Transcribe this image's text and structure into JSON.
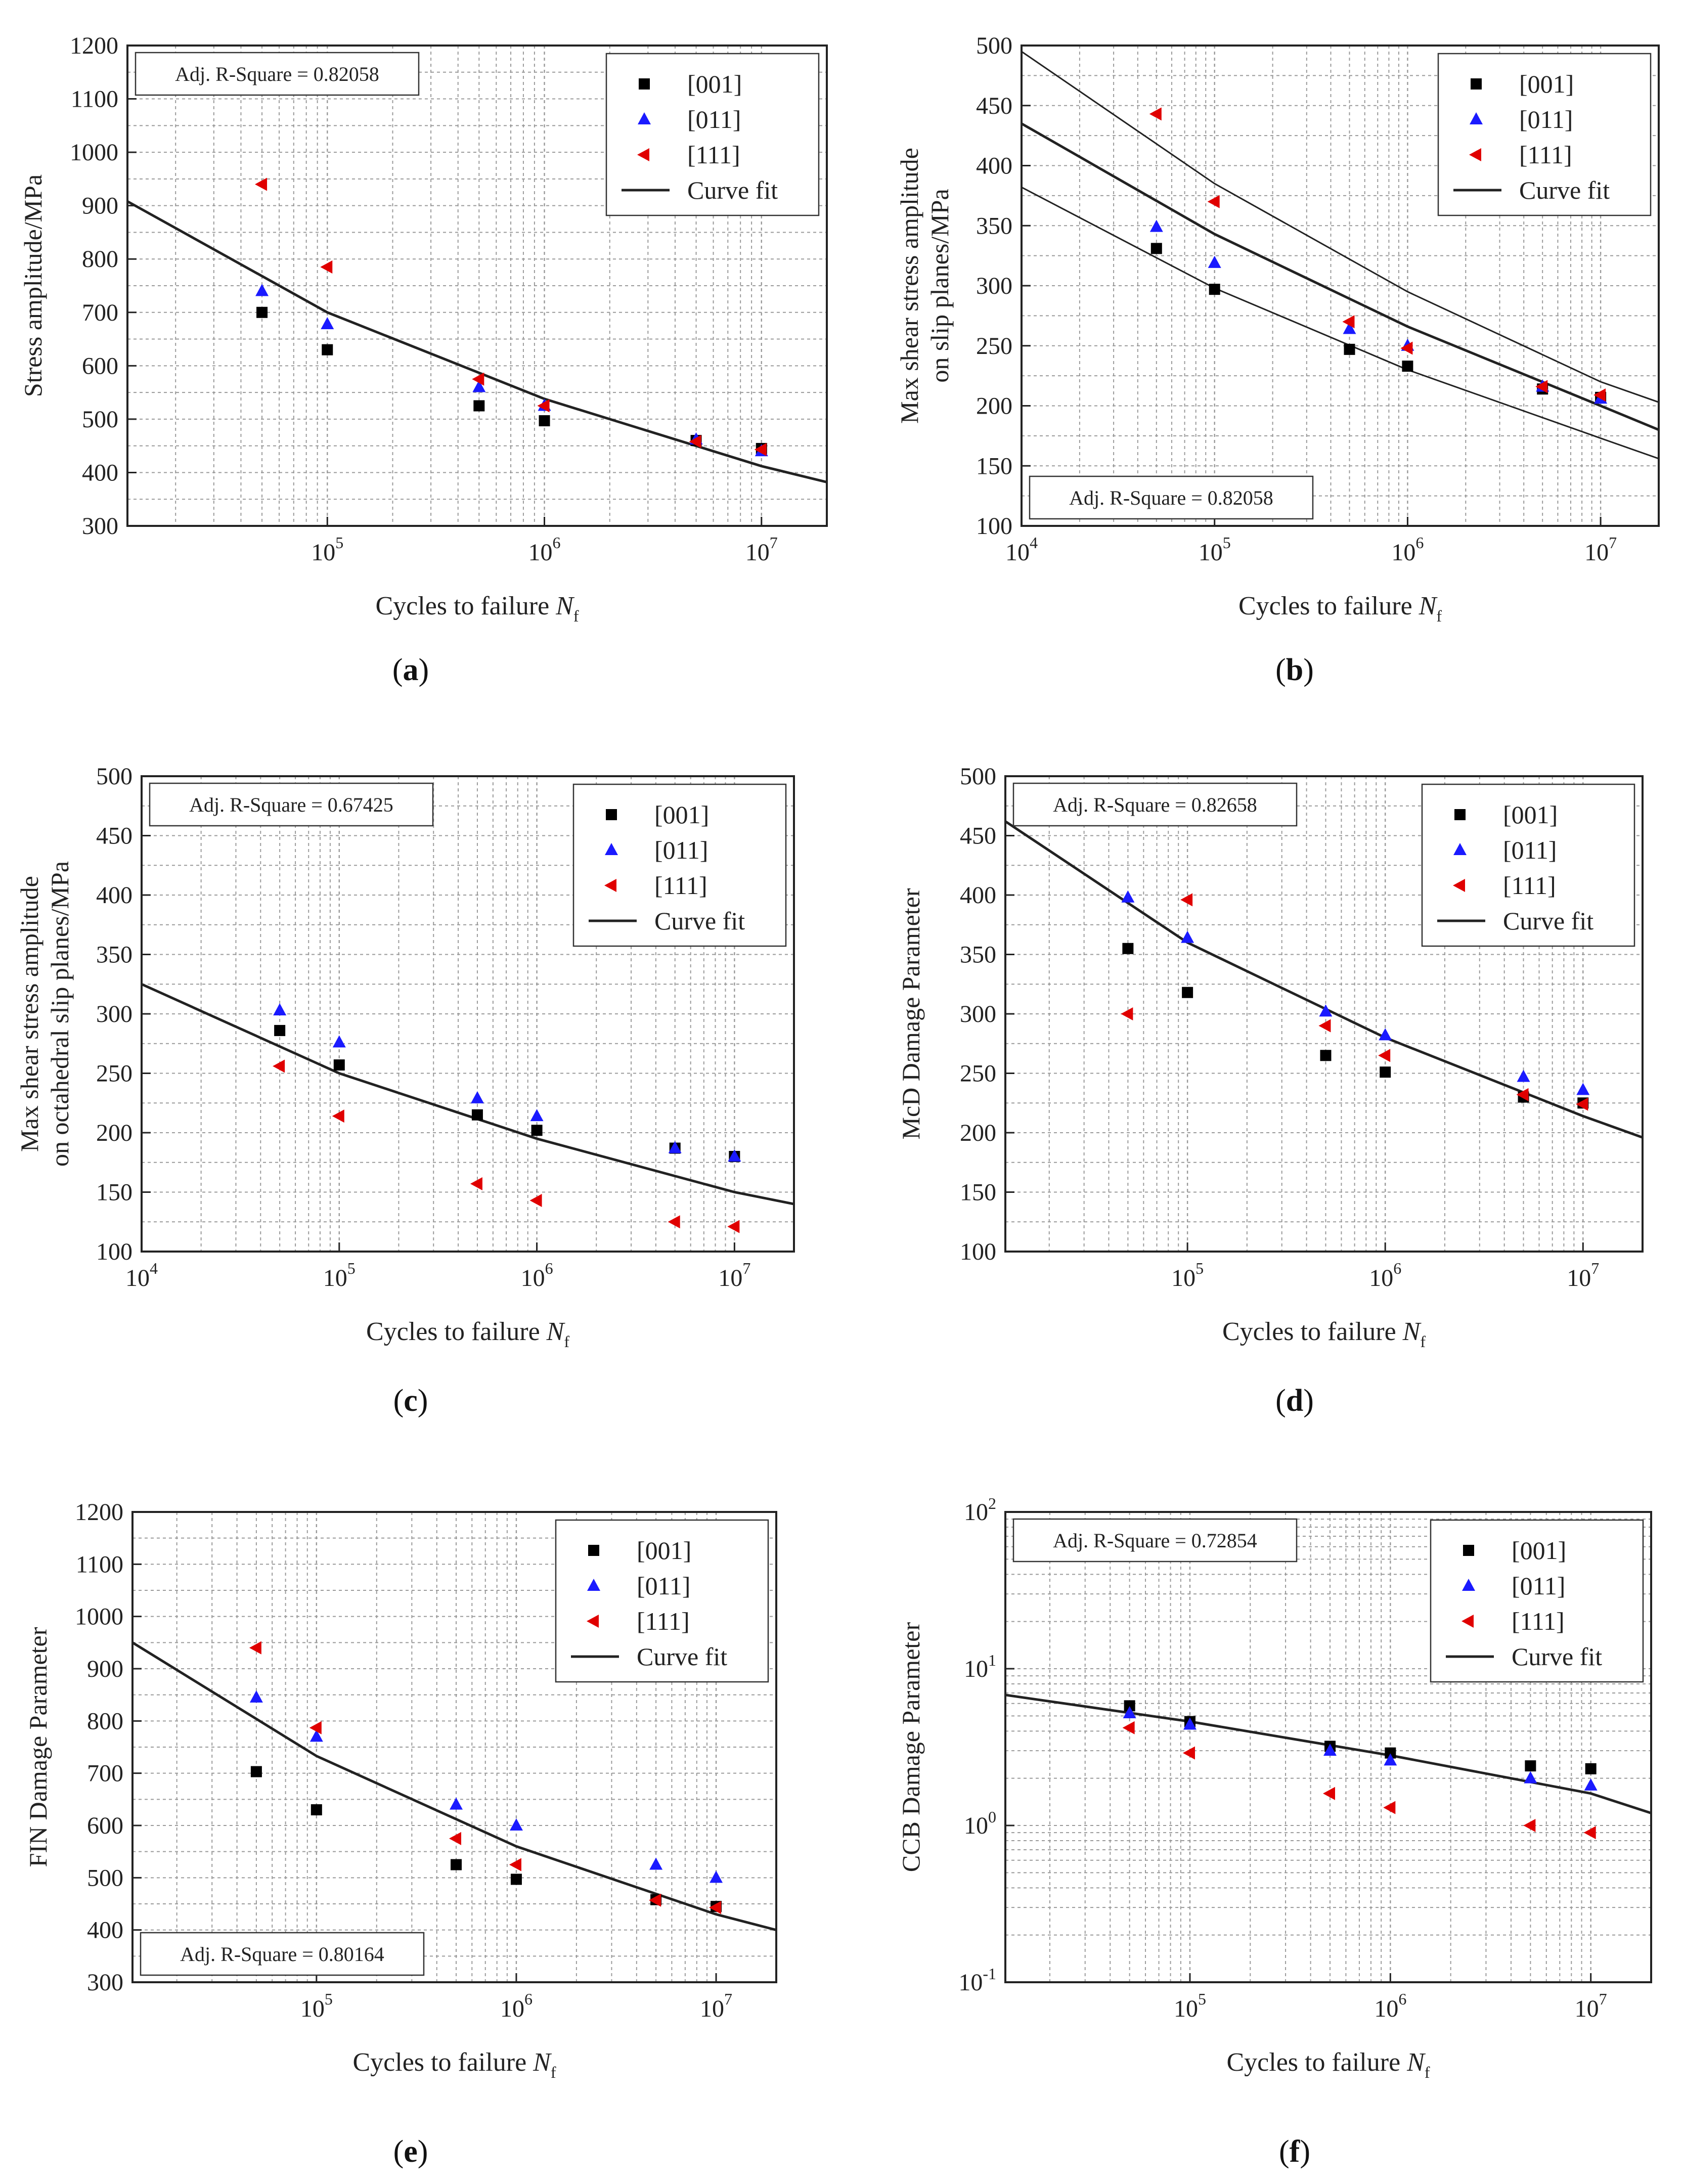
{
  "figure": {
    "x_axis_label": "Cycles to failure",
    "x_axis_symbol": "N",
    "x_axis_subscript": "f"
  },
  "legend_labels": [
    "[001]",
    "[011]",
    "[111]",
    "Curve fit"
  ],
  "colors": {
    "s001": "#000000",
    "s011": "#1a1aff",
    "s111": "#e00000",
    "fit": "#222222",
    "grid": "#9a9a9a"
  },
  "chart_data": [
    {
      "id": "a",
      "type": "scatter",
      "panel_label": "a",
      "ylabel": "Stress amplitude/MPa",
      "yscale": "linear",
      "ylim": [
        300,
        1200
      ],
      "yticks": [
        300,
        400,
        500,
        600,
        700,
        800,
        900,
        1000,
        1100,
        1200
      ],
      "yticklabels": [
        "300",
        "400",
        "500",
        "600",
        "700",
        "800",
        "900",
        "1000",
        "1100",
        "1200"
      ],
      "xlim": [
        12000,
        20000000
      ],
      "xticks": [
        100000,
        1000000,
        10000000
      ],
      "xdecade_start": 4,
      "annotation": "Adj. R-Square = 0.82058",
      "annotation_pos": "top-left",
      "legend_pos": "top-right",
      "series": [
        {
          "name": "[001]",
          "x": [
            50000,
            100000,
            500000,
            1000000,
            5000000,
            10000000
          ],
          "y": [
            700,
            630,
            525,
            497,
            460,
            445
          ]
        },
        {
          "name": "[011]",
          "x": [
            50000,
            100000,
            500000,
            1000000,
            5000000,
            10000000
          ],
          "y": [
            740,
            678,
            560,
            525,
            462,
            440
          ]
        },
        {
          "name": "[111]",
          "x": [
            50000,
            100000,
            500000,
            1000000,
            5000000,
            10000000
          ],
          "y": [
            940,
            785,
            575,
            525,
            458,
            443
          ]
        }
      ],
      "fits": [
        {
          "name": "Curve fit",
          "x": [
            12000,
            100000,
            1000000,
            10000000,
            20000000
          ],
          "y": [
            908,
            700,
            538,
            412,
            382
          ]
        }
      ]
    },
    {
      "id": "b",
      "type": "scatter",
      "panel_label": "b",
      "ylabel_lines": [
        "Max shear stress amplitude",
        "on slip planes/MPa"
      ],
      "yscale": "linear",
      "ylim": [
        100,
        500
      ],
      "yticks": [
        100,
        150,
        200,
        250,
        300,
        350,
        400,
        450,
        500
      ],
      "yticklabels": [
        "100",
        "150",
        "200",
        "250",
        "300",
        "350",
        "400",
        "450",
        "500"
      ],
      "xlim": [
        10000,
        20000000
      ],
      "xticks": [
        10000,
        100000,
        1000000,
        10000000
      ],
      "xdecade_start": 4,
      "annotation": "Adj. R-Square = 0.82058",
      "annotation_pos": "bottom-left",
      "legend_pos": "top-right",
      "series": [
        {
          "name": "[001]",
          "x": [
            50000,
            100000,
            500000,
            1000000,
            5000000,
            10000000
          ],
          "y": [
            331,
            297,
            247,
            233,
            214,
            207
          ]
        },
        {
          "name": "[011]",
          "x": [
            50000,
            100000,
            500000,
            1000000,
            5000000,
            10000000
          ],
          "y": [
            349,
            319,
            264,
            250,
            216,
            206
          ]
        },
        {
          "name": "[111]",
          "x": [
            50000,
            100000,
            500000,
            1000000,
            5000000,
            10000000
          ],
          "y": [
            443,
            370,
            270,
            248,
            216,
            209
          ]
        }
      ],
      "fits": [
        {
          "name": "Curve fit",
          "x": [
            10000,
            100000,
            1000000,
            10000000,
            20000000
          ],
          "y": [
            435,
            343,
            266,
            200,
            180
          ]
        },
        {
          "name": "upper bound",
          "x": [
            10000,
            100000,
            1000000,
            10000000,
            20000000
          ],
          "y": [
            495,
            385,
            295,
            220,
            203
          ]
        },
        {
          "name": "lower bound",
          "x": [
            10000,
            100000,
            1000000,
            10000000,
            20000000
          ],
          "y": [
            382,
            298,
            230,
            173,
            156
          ]
        }
      ]
    },
    {
      "id": "c",
      "type": "scatter",
      "panel_label": "c",
      "ylabel_lines": [
        "Max shear stress amplitude",
        "on octahedral slip planes/MPa"
      ],
      "yscale": "linear",
      "ylim": [
        100,
        500
      ],
      "yticks": [
        100,
        150,
        200,
        250,
        300,
        350,
        400,
        450,
        500
      ],
      "yticklabels": [
        "100",
        "150",
        "200",
        "250",
        "300",
        "350",
        "400",
        "450",
        "500"
      ],
      "xlim": [
        10000,
        20000000
      ],
      "xticks": [
        10000,
        100000,
        1000000,
        10000000
      ],
      "xdecade_start": 4,
      "annotation": "Adj. R-Square = 0.67425",
      "annotation_pos": "top-left",
      "legend_pos": "top-right",
      "series": [
        {
          "name": "[001]",
          "x": [
            50000,
            100000,
            500000,
            1000000,
            5000000,
            10000000
          ],
          "y": [
            286,
            257,
            215,
            202,
            187,
            180
          ]
        },
        {
          "name": "[011]",
          "x": [
            50000,
            100000,
            500000,
            1000000,
            5000000,
            10000000
          ],
          "y": [
            303,
            276,
            229,
            214,
            187,
            180
          ]
        },
        {
          "name": "[111]",
          "x": [
            50000,
            100000,
            500000,
            1000000,
            5000000,
            10000000
          ],
          "y": [
            256,
            214,
            157,
            143,
            125,
            121
          ]
        }
      ],
      "fits": [
        {
          "name": "Curve fit",
          "x": [
            10000,
            100000,
            1000000,
            10000000,
            20000000
          ],
          "y": [
            325,
            250,
            195,
            150,
            140
          ]
        }
      ]
    },
    {
      "id": "d",
      "type": "scatter",
      "panel_label": "d",
      "ylabel": "McD Damage Parameter",
      "yscale": "linear",
      "ylim": [
        100,
        500
      ],
      "yticks": [
        100,
        150,
        200,
        250,
        300,
        350,
        400,
        450,
        500
      ],
      "yticklabels": [
        "100",
        "150",
        "200",
        "250",
        "300",
        "350",
        "400",
        "450",
        "500"
      ],
      "xlim": [
        12000,
        20000000
      ],
      "xticks": [
        100000,
        1000000,
        10000000
      ],
      "xdecade_start": 4,
      "annotation": "Adj. R-Square = 0.82658",
      "annotation_pos": "top-left",
      "legend_pos": "top-right",
      "series": [
        {
          "name": "[001]",
          "x": [
            50000,
            100000,
            500000,
            1000000,
            5000000,
            10000000
          ],
          "y": [
            355,
            318,
            265,
            251,
            230,
            225
          ]
        },
        {
          "name": "[011]",
          "x": [
            50000,
            100000,
            500000,
            1000000,
            5000000,
            10000000
          ],
          "y": [
            398,
            364,
            302,
            282,
            247,
            236
          ]
        },
        {
          "name": "[111]",
          "x": [
            50000,
            100000,
            500000,
            1000000,
            5000000,
            10000000
          ],
          "y": [
            300,
            396,
            290,
            265,
            232,
            224
          ]
        }
      ],
      "fits": [
        {
          "name": "Curve fit",
          "x": [
            12000,
            100000,
            1000000,
            10000000,
            20000000
          ],
          "y": [
            462,
            360,
            280,
            214,
            196
          ]
        }
      ]
    },
    {
      "id": "e",
      "type": "scatter",
      "panel_label": "e",
      "ylabel": "FIN Damage Parameter",
      "yscale": "linear",
      "ylim": [
        300,
        1200
      ],
      "yticks": [
        300,
        400,
        500,
        600,
        700,
        800,
        900,
        1000,
        1100,
        1200
      ],
      "yticklabels": [
        "300",
        "400",
        "500",
        "600",
        "700",
        "800",
        "900",
        "1000",
        "1100",
        "1200"
      ],
      "xlim": [
        12000,
        20000000
      ],
      "xticks": [
        100000,
        1000000,
        10000000
      ],
      "xdecade_start": 4,
      "annotation": "Adj. R-Square = 0.80164",
      "annotation_pos": "bottom-left",
      "legend_pos": "top-right",
      "series": [
        {
          "name": "[001]",
          "x": [
            50000,
            100000,
            500000,
            1000000,
            5000000,
            10000000
          ],
          "y": [
            703,
            630,
            525,
            497,
            458,
            445
          ]
        },
        {
          "name": "[011]",
          "x": [
            50000,
            100000,
            500000,
            1000000,
            5000000,
            10000000
          ],
          "y": [
            845,
            770,
            640,
            600,
            525,
            500
          ]
        },
        {
          "name": "[111]",
          "x": [
            50000,
            100000,
            500000,
            1000000,
            5000000,
            10000000
          ],
          "y": [
            940,
            787,
            575,
            525,
            457,
            443
          ]
        }
      ],
      "fits": [
        {
          "name": "Curve fit",
          "x": [
            12000,
            100000,
            1000000,
            10000000,
            20000000
          ],
          "y": [
            950,
            733,
            560,
            430,
            400
          ]
        }
      ]
    },
    {
      "id": "f",
      "type": "scatter",
      "panel_label": "f",
      "ylabel": "CCB Damage Parameter",
      "yscale": "log",
      "ylim": [
        0.1,
        100
      ],
      "yticks": [
        0.1,
        1,
        10,
        100
      ],
      "yticklabels": [
        "10",
        "10",
        "10",
        "10"
      ],
      "ytick_exponents": [
        "-1",
        "0",
        "1",
        "2"
      ],
      "xlim": [
        12000,
        20000000
      ],
      "xticks": [
        100000,
        1000000,
        10000000
      ],
      "xdecade_start": 4,
      "annotation": "Adj. R-Square = 0.72854",
      "annotation_pos": "top-left",
      "legend_pos": "top-right",
      "series": [
        {
          "name": "[001]",
          "x": [
            50000,
            100000,
            500000,
            1000000,
            5000000,
            10000000
          ],
          "y": [
            5.8,
            4.6,
            3.2,
            2.9,
            2.4,
            2.3
          ]
        },
        {
          "name": "[011]",
          "x": [
            50000,
            100000,
            500000,
            1000000,
            5000000,
            10000000
          ],
          "y": [
            5.2,
            4.4,
            3.0,
            2.6,
            2.0,
            1.8
          ]
        },
        {
          "name": "[111]",
          "x": [
            50000,
            100000,
            500000,
            1000000,
            5000000,
            10000000
          ],
          "y": [
            4.2,
            2.9,
            1.6,
            1.3,
            1.0,
            0.9
          ]
        }
      ],
      "fits": [
        {
          "name": "Curve fit",
          "x": [
            12000,
            100000,
            1000000,
            10000000,
            20000000
          ],
          "y": [
            6.8,
            4.6,
            2.8,
            1.6,
            1.2
          ]
        }
      ]
    }
  ]
}
